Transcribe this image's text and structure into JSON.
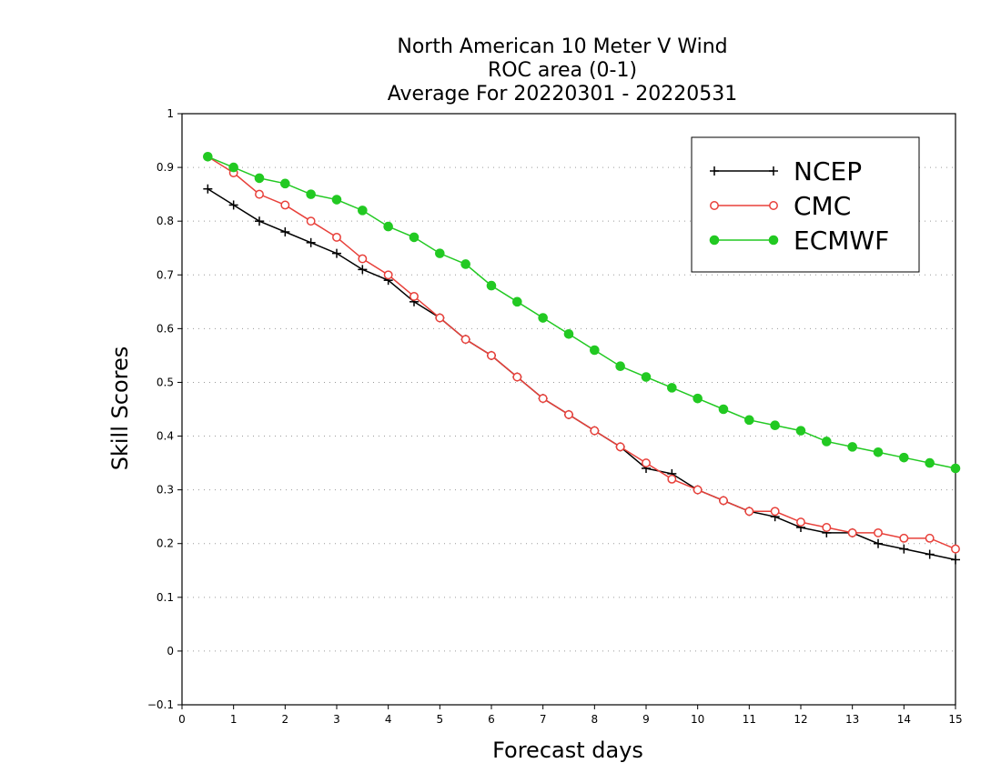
{
  "chart_data": {
    "type": "line",
    "title_lines": [
      "North American 10 Meter V Wind",
      "ROC area (0-1)",
      "Average For 20220301 - 20220531"
    ],
    "xlabel": "Forecast days",
    "ylabel": "Skill Scores",
    "xlim": [
      0,
      15
    ],
    "ylim": [
      -0.1,
      1
    ],
    "xticks": [
      "0",
      "1",
      "2",
      "3",
      "4",
      "5",
      "6",
      "7",
      "8",
      "9",
      "10",
      "11",
      "12",
      "13",
      "14",
      "15"
    ],
    "yticks": [
      "−0.1",
      "0",
      "0.1",
      "0.2",
      "0.3",
      "0.4",
      "0.5",
      "0.6",
      "0.7",
      "0.8",
      "0.9",
      "1"
    ],
    "grid": "horizontal dotted",
    "legend_position": "top-right",
    "x": [
      0.5,
      1,
      1.5,
      2,
      2.5,
      3,
      3.5,
      4,
      4.5,
      5,
      5.5,
      6,
      6.5,
      7,
      7.5,
      8,
      8.5,
      9,
      9.5,
      10,
      10.5,
      11,
      11.5,
      12,
      12.5,
      13,
      13.5,
      14,
      14.5,
      15
    ],
    "series": [
      {
        "name": "NCEP",
        "color": "#000000",
        "marker": "plus",
        "values": [
          0.86,
          0.83,
          0.8,
          0.78,
          0.76,
          0.74,
          0.71,
          0.69,
          0.65,
          0.62,
          0.58,
          0.55,
          0.51,
          0.47,
          0.44,
          0.41,
          0.38,
          0.34,
          0.33,
          0.3,
          0.28,
          0.26,
          0.25,
          0.23,
          0.22,
          0.22,
          0.2,
          0.19,
          0.18,
          0.17
        ]
      },
      {
        "name": "CMC",
        "color": "#e8403a",
        "marker": "open-circle",
        "values": [
          0.92,
          0.89,
          0.85,
          0.83,
          0.8,
          0.77,
          0.73,
          0.7,
          0.66,
          0.62,
          0.58,
          0.55,
          0.51,
          0.47,
          0.44,
          0.41,
          0.38,
          0.35,
          0.32,
          0.3,
          0.28,
          0.26,
          0.26,
          0.24,
          0.23,
          0.22,
          0.22,
          0.21,
          0.21,
          0.19
        ]
      },
      {
        "name": "ECMWF",
        "color": "#22c922",
        "marker": "filled-circle",
        "values": [
          0.92,
          0.9,
          0.88,
          0.87,
          0.85,
          0.84,
          0.82,
          0.79,
          0.77,
          0.74,
          0.72,
          0.68,
          0.65,
          0.62,
          0.59,
          0.56,
          0.53,
          0.51,
          0.49,
          0.47,
          0.45,
          0.43,
          0.42,
          0.41,
          0.39,
          0.38,
          0.37,
          0.36,
          0.35,
          0.34
        ]
      }
    ]
  }
}
